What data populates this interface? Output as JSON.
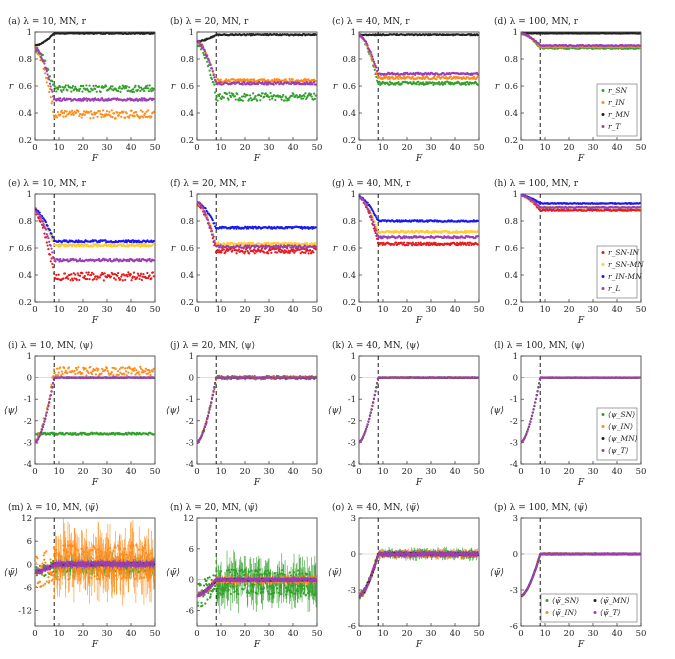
{
  "colors": {
    "SN": "#33a02c",
    "IN": "#ff8c1a",
    "MN": "#222222",
    "T": "#9b3fb3",
    "SN-IN": "#e41a1c",
    "SN-MN": "#ffcc33",
    "IN-MN": "#1a1aee",
    "L": "#9b3fb3"
  },
  "chart_data": [
    {
      "id": "a",
      "type": "scatter",
      "title": "(a) λ = 10, MN, r",
      "xlabel": "F",
      "ylabel": "r",
      "xlim": [
        0,
        50
      ],
      "ylim": [
        0.2,
        1.0
      ],
      "xticks": [
        "0",
        "10",
        "20",
        "30",
        "40",
        "50"
      ],
      "yticks": [
        "0.2",
        "0.4",
        "0.6",
        "0.8",
        "1"
      ],
      "dashed_x": 8,
      "series": [
        {
          "key": "SN",
          "name": "r_SN",
          "start": 0.88,
          "level": 0.58,
          "noise": 0.025
        },
        {
          "key": "IN",
          "name": "r_IN",
          "start": 0.88,
          "level": 0.39,
          "noise": 0.03
        },
        {
          "key": "MN",
          "name": "r_MN",
          "start": 0.9,
          "level": 0.99,
          "noise": 0.004
        },
        {
          "key": "T",
          "name": "r_T",
          "start": 0.88,
          "level": 0.5,
          "noise": 0.01
        }
      ]
    },
    {
      "id": "b",
      "type": "scatter",
      "title": "(b) λ = 20, MN, r",
      "xlabel": "F",
      "ylabel": "r",
      "xlim": [
        0,
        50
      ],
      "ylim": [
        0.2,
        1.0
      ],
      "xticks": [
        "0",
        "10",
        "20",
        "30",
        "40",
        "50"
      ],
      "yticks": [
        "0.2",
        "0.4",
        "0.6",
        "0.8",
        "1"
      ],
      "dashed_x": 8,
      "series": [
        {
          "key": "SN",
          "name": "r_SN",
          "start": 0.93,
          "level": 0.52,
          "noise": 0.03
        },
        {
          "key": "IN",
          "name": "r_IN",
          "start": 0.93,
          "level": 0.64,
          "noise": 0.012
        },
        {
          "key": "MN",
          "name": "r_MN",
          "start": 0.93,
          "level": 0.98,
          "noise": 0.005
        },
        {
          "key": "T",
          "name": "r_T",
          "start": 0.93,
          "level": 0.62,
          "noise": 0.01
        }
      ]
    },
    {
      "id": "c",
      "type": "scatter",
      "title": "(c) λ = 40, MN, r",
      "xlabel": "F",
      "ylabel": "r",
      "xlim": [
        0,
        50
      ],
      "ylim": [
        0.2,
        1.0
      ],
      "xticks": [
        "0",
        "10",
        "20",
        "30",
        "40",
        "50"
      ],
      "yticks": [
        "0.2",
        "0.4",
        "0.6",
        "0.8",
        "1"
      ],
      "dashed_x": 8,
      "series": [
        {
          "key": "SN",
          "name": "r_SN",
          "start": 0.98,
          "level": 0.62,
          "noise": 0.012
        },
        {
          "key": "IN",
          "name": "r_IN",
          "start": 0.98,
          "level": 0.66,
          "noise": 0.01
        },
        {
          "key": "MN",
          "name": "r_MN",
          "start": 0.98,
          "level": 0.98,
          "noise": 0.004
        },
        {
          "key": "T",
          "name": "r_T",
          "start": 0.98,
          "level": 0.69,
          "noise": 0.008
        }
      ]
    },
    {
      "id": "d",
      "type": "scatter",
      "title": "(d) λ = 100, MN, r",
      "xlabel": "F",
      "ylabel": "r",
      "xlim": [
        0,
        50
      ],
      "ylim": [
        0.2,
        1.0
      ],
      "xticks": [
        "0",
        "10",
        "20",
        "30",
        "40",
        "50"
      ],
      "yticks": [
        "0.2",
        "0.4",
        "0.6",
        "0.8",
        "1"
      ],
      "dashed_x": 8,
      "legend": [
        {
          "key": "SN",
          "label": "r_SN"
        },
        {
          "key": "IN",
          "label": "r_IN"
        },
        {
          "key": "MN",
          "label": "r_MN"
        },
        {
          "key": "T",
          "label": "r_T"
        }
      ],
      "series": [
        {
          "key": "SN",
          "name": "r_SN",
          "start": 0.99,
          "level": 0.88,
          "noise": 0.005
        },
        {
          "key": "IN",
          "name": "r_IN",
          "start": 0.99,
          "level": 0.89,
          "noise": 0.005
        },
        {
          "key": "MN",
          "name": "r_MN",
          "start": 0.99,
          "level": 0.99,
          "noise": 0.002
        },
        {
          "key": "T",
          "name": "r_T",
          "start": 0.99,
          "level": 0.9,
          "noise": 0.004
        }
      ]
    },
    {
      "id": "e",
      "type": "scatter",
      "title": "(e) λ = 10, MN, r",
      "xlabel": "F",
      "ylabel": "r",
      "xlim": [
        0,
        50
      ],
      "ylim": [
        0.2,
        1.0
      ],
      "xticks": [
        "0",
        "10",
        "20",
        "30",
        "40",
        "50"
      ],
      "yticks": [
        "0.2",
        "0.4",
        "0.6",
        "0.8",
        "1"
      ],
      "dashed_x": 8,
      "series": [
        {
          "key": "SN-IN",
          "name": "r_SN-IN",
          "start": 0.88,
          "level": 0.39,
          "noise": 0.03
        },
        {
          "key": "SN-MN",
          "name": "r_SN-MN",
          "start": 0.88,
          "level": 0.62,
          "noise": 0.01
        },
        {
          "key": "IN-MN",
          "name": "r_IN-MN",
          "start": 0.88,
          "level": 0.65,
          "noise": 0.008
        },
        {
          "key": "L",
          "name": "r_L",
          "start": 0.88,
          "level": 0.51,
          "noise": 0.01
        }
      ]
    },
    {
      "id": "f",
      "type": "scatter",
      "title": "(f) λ = 20, MN, r",
      "xlabel": "F",
      "ylabel": "r",
      "xlim": [
        0,
        50
      ],
      "ylim": [
        0.2,
        1.0
      ],
      "xticks": [
        "0",
        "10",
        "20",
        "30",
        "40",
        "50"
      ],
      "yticks": [
        "0.2",
        "0.4",
        "0.6",
        "0.8",
        "1"
      ],
      "dashed_x": 8,
      "series": [
        {
          "key": "SN-IN",
          "name": "r_SN-IN",
          "start": 0.94,
          "level": 0.58,
          "noise": 0.02
        },
        {
          "key": "SN-MN",
          "name": "r_SN-MN",
          "start": 0.94,
          "level": 0.63,
          "noise": 0.01
        },
        {
          "key": "IN-MN",
          "name": "r_IN-MN",
          "start": 0.94,
          "level": 0.75,
          "noise": 0.008
        },
        {
          "key": "L",
          "name": "r_L",
          "start": 0.94,
          "level": 0.61,
          "noise": 0.01
        }
      ]
    },
    {
      "id": "g",
      "type": "scatter",
      "title": "(g) λ = 40, MN, r",
      "xlabel": "F",
      "ylabel": "r",
      "xlim": [
        0,
        50
      ],
      "ylim": [
        0.2,
        1.0
      ],
      "xticks": [
        "0",
        "10",
        "20",
        "30",
        "40",
        "50"
      ],
      "yticks": [
        "0.2",
        "0.4",
        "0.6",
        "0.8",
        "1"
      ],
      "dashed_x": 8,
      "series": [
        {
          "key": "SN-IN",
          "name": "r_SN-IN",
          "start": 0.98,
          "level": 0.63,
          "noise": 0.01
        },
        {
          "key": "SN-MN",
          "name": "r_SN-MN",
          "start": 0.98,
          "level": 0.72,
          "noise": 0.008
        },
        {
          "key": "IN-MN",
          "name": "r_IN-MN",
          "start": 0.98,
          "level": 0.8,
          "noise": 0.006
        },
        {
          "key": "L",
          "name": "r_L",
          "start": 0.98,
          "level": 0.68,
          "noise": 0.008
        }
      ]
    },
    {
      "id": "h",
      "type": "scatter",
      "title": "(h) λ = 100, MN, r",
      "xlabel": "F",
      "ylabel": "r",
      "xlim": [
        0,
        50
      ],
      "ylim": [
        0.2,
        1.0
      ],
      "xticks": [
        "0",
        "10",
        "20",
        "30",
        "40",
        "50"
      ],
      "yticks": [
        "0.2",
        "0.4",
        "0.6",
        "0.8",
        "1"
      ],
      "dashed_x": 8,
      "legend": [
        {
          "key": "SN-IN",
          "label": "r_SN-IN"
        },
        {
          "key": "SN-MN",
          "label": "r_SN-MN"
        },
        {
          "key": "IN-MN",
          "label": "r_IN-MN"
        },
        {
          "key": "L",
          "label": "r_L"
        }
      ],
      "series": [
        {
          "key": "SN-IN",
          "name": "r_SN-IN",
          "start": 0.99,
          "level": 0.88,
          "noise": 0.005
        },
        {
          "key": "SN-MN",
          "name": "r_SN-MN",
          "start": 0.99,
          "level": 0.9,
          "noise": 0.004
        },
        {
          "key": "IN-MN",
          "name": "r_IN-MN",
          "start": 0.99,
          "level": 0.93,
          "noise": 0.003
        },
        {
          "key": "L",
          "name": "r_L",
          "start": 0.99,
          "level": 0.9,
          "noise": 0.004
        }
      ]
    },
    {
      "id": "i",
      "type": "scatter",
      "title": "(i) λ = 10, MN, ⟨ψ⟩",
      "xlabel": "F",
      "ylabel": "⟨ψ⟩",
      "xlim": [
        0,
        50
      ],
      "ylim": [
        -4,
        1
      ],
      "xticks": [
        "0",
        "10",
        "20",
        "30",
        "40",
        "50"
      ],
      "yticks": [
        "-4",
        "-3",
        "-2",
        "-1",
        "0",
        "1"
      ],
      "dashed_x": 8,
      "series": [
        {
          "key": "SN",
          "name": "⟨ψ_SN⟩",
          "start": -2.6,
          "level": -2.6,
          "noise": 0.05
        },
        {
          "key": "IN",
          "name": "⟨ψ_IN⟩",
          "start": -3,
          "level": 0.3,
          "noise": 0.2
        },
        {
          "key": "MN",
          "name": "⟨ψ_MN⟩",
          "start": -3,
          "level": 0.0,
          "noise": 0.01
        },
        {
          "key": "T",
          "name": "⟨ψ_T⟩",
          "start": -3,
          "level": 0.0,
          "noise": 0.02
        }
      ]
    },
    {
      "id": "j",
      "type": "scatter",
      "title": "(j) λ = 20, MN, ⟨ψ⟩",
      "xlabel": "F",
      "ylabel": "⟨ψ⟩",
      "xlim": [
        0,
        50
      ],
      "ylim": [
        -4,
        1
      ],
      "xticks": [
        "0",
        "10",
        "20",
        "30",
        "40",
        "50"
      ],
      "yticks": [
        "-4",
        "-3",
        "-2",
        "-1",
        "0",
        "1"
      ],
      "dashed_x": 8,
      "series": [
        {
          "key": "SN",
          "name": "⟨ψ_SN⟩",
          "start": -3,
          "level": 0.0,
          "noise": 0.08
        },
        {
          "key": "IN",
          "name": "⟨ψ_IN⟩",
          "start": -3,
          "level": 0.0,
          "noise": 0.05
        },
        {
          "key": "MN",
          "name": "⟨ψ_MN⟩",
          "start": -3,
          "level": 0.0,
          "noise": 0.01
        },
        {
          "key": "T",
          "name": "⟨ψ_T⟩",
          "start": -3,
          "level": 0.0,
          "noise": 0.02
        }
      ]
    },
    {
      "id": "k",
      "type": "scatter",
      "title": "(k) λ = 40, MN, ⟨ψ⟩",
      "xlabel": "F",
      "ylabel": "⟨ψ⟩",
      "xlim": [
        0,
        50
      ],
      "ylim": [
        -4,
        1
      ],
      "xticks": [
        "0",
        "10",
        "20",
        "30",
        "40",
        "50"
      ],
      "yticks": [
        "-4",
        "-3",
        "-2",
        "-1",
        "0",
        "1"
      ],
      "dashed_x": 8,
      "series": [
        {
          "key": "SN",
          "name": "⟨ψ_SN⟩",
          "start": -3,
          "level": 0.0,
          "noise": 0.02
        },
        {
          "key": "IN",
          "name": "⟨ψ_IN⟩",
          "start": -3,
          "level": 0.0,
          "noise": 0.02
        },
        {
          "key": "MN",
          "name": "⟨ψ_MN⟩",
          "start": -3,
          "level": 0.0,
          "noise": 0.01
        },
        {
          "key": "T",
          "name": "⟨ψ_T⟩",
          "start": -3,
          "level": 0.0,
          "noise": 0.01
        }
      ]
    },
    {
      "id": "l",
      "type": "scatter",
      "title": "(l) λ = 100, MN, ⟨ψ⟩",
      "xlabel": "F",
      "ylabel": "⟨ψ⟩",
      "xlim": [
        0,
        50
      ],
      "ylim": [
        -4,
        1
      ],
      "xticks": [
        "0",
        "10",
        "20",
        "30",
        "40",
        "50"
      ],
      "yticks": [
        "-4",
        "-3",
        "-2",
        "-1",
        "0",
        "1"
      ],
      "dashed_x": 8,
      "legend": [
        {
          "key": "SN",
          "label": "⟨ψ_SN⟩"
        },
        {
          "key": "IN",
          "label": "⟨ψ_IN⟩"
        },
        {
          "key": "MN",
          "label": "⟨ψ_MN⟩"
        },
        {
          "key": "T",
          "label": "⟨ψ_T⟩"
        }
      ],
      "series": [
        {
          "key": "SN",
          "name": "⟨ψ_SN⟩",
          "start": -3,
          "level": 0.0,
          "noise": 0.01
        },
        {
          "key": "IN",
          "name": "⟨ψ_IN⟩",
          "start": -3,
          "level": 0.0,
          "noise": 0.01
        },
        {
          "key": "MN",
          "name": "⟨ψ_MN⟩",
          "start": -3,
          "level": 0.0,
          "noise": 0.005
        },
        {
          "key": "T",
          "name": "⟨ψ_T⟩",
          "start": -3,
          "level": 0.0,
          "noise": 0.01
        }
      ]
    },
    {
      "id": "m",
      "type": "scatter",
      "title": "(m) λ = 10, MN, ⟨ψ̃⟩",
      "xlabel": "F",
      "ylabel": "⟨ψ̃⟩",
      "xlim": [
        0,
        50
      ],
      "ylim": [
        -16,
        12
      ],
      "xticks": [
        "0",
        "10",
        "20",
        "30",
        "40",
        "50"
      ],
      "yticks": [
        "-12",
        "-6",
        "0",
        "6",
        "12"
      ],
      "dashed_x": 8,
      "series": [
        {
          "key": "SN",
          "name": "⟨ψ̃_SN⟩",
          "start": -2,
          "level": -0.5,
          "noise": 1.5
        },
        {
          "key": "IN",
          "name": "⟨ψ̃_IN⟩",
          "start": -2,
          "level": 0.5,
          "noise": 4.5
        },
        {
          "key": "MN",
          "name": "⟨ψ̃_MN⟩",
          "start": -2,
          "level": 0.0,
          "noise": 0.3
        },
        {
          "key": "T",
          "name": "⟨ψ̃_T⟩",
          "start": -2,
          "level": 0.0,
          "noise": 0.6
        }
      ]
    },
    {
      "id": "n",
      "type": "scatter",
      "title": "(n) λ = 20, MN, ⟨ψ̃⟩",
      "xlabel": "F",
      "ylabel": "⟨ψ̃⟩",
      "xlim": [
        0,
        50
      ],
      "ylim": [
        -9,
        12
      ],
      "xticks": [
        "0",
        "10",
        "20",
        "30",
        "40",
        "50"
      ],
      "yticks": [
        "-6",
        "0",
        "6",
        "12"
      ],
      "dashed_x": 8,
      "series": [
        {
          "key": "SN",
          "name": "⟨ψ̃_SN⟩",
          "start": -3,
          "level": -0.5,
          "noise": 2.5
        },
        {
          "key": "IN",
          "name": "⟨ψ̃_IN⟩",
          "start": -3,
          "level": 0.0,
          "noise": 0.5
        },
        {
          "key": "MN",
          "name": "⟨ψ̃_MN⟩",
          "start": -3,
          "level": 0.0,
          "noise": 0.2
        },
        {
          "key": "T",
          "name": "⟨ψ̃_T⟩",
          "start": -3,
          "level": 0.0,
          "noise": 0.3
        }
      ]
    },
    {
      "id": "o",
      "type": "scatter",
      "title": "(o) λ = 40, MN, ⟨ψ̃⟩",
      "xlabel": "F",
      "ylabel": "⟨ψ̃⟩",
      "xlim": [
        0,
        50
      ],
      "ylim": [
        -6,
        3
      ],
      "xticks": [
        "0",
        "10",
        "20",
        "30",
        "40",
        "50"
      ],
      "yticks": [
        "-6",
        "-3",
        "0",
        "3"
      ],
      "dashed_x": 8,
      "series": [
        {
          "key": "SN",
          "name": "⟨ψ̃_SN⟩",
          "start": -3.5,
          "level": 0.0,
          "noise": 0.25
        },
        {
          "key": "IN",
          "name": "⟨ψ̃_IN⟩",
          "start": -3.5,
          "level": 0.0,
          "noise": 0.2
        },
        {
          "key": "MN",
          "name": "⟨ψ̃_MN⟩",
          "start": -3.5,
          "level": 0.0,
          "noise": 0.1
        },
        {
          "key": "T",
          "name": "⟨ψ̃_T⟩",
          "start": -3.5,
          "level": 0.0,
          "noise": 0.15
        }
      ]
    },
    {
      "id": "p",
      "type": "scatter",
      "title": "(p) λ = 100, MN, ⟨ψ̃⟩",
      "xlabel": "F",
      "ylabel": "⟨ψ̃⟩",
      "xlim": [
        0,
        50
      ],
      "ylim": [
        -6,
        3
      ],
      "xticks": [
        "0",
        "10",
        "20",
        "30",
        "40",
        "50"
      ],
      "yticks": [
        "-6",
        "-3",
        "0",
        "3"
      ],
      "dashed_x": 8,
      "legend": [
        {
          "key": "SN",
          "label": "⟨ψ̃_SN⟩"
        },
        {
          "key": "MN",
          "label": "⟨ψ̃_MN⟩"
        },
        {
          "key": "IN",
          "label": "⟨ψ̃_IN⟩"
        },
        {
          "key": "T",
          "label": "⟨ψ̃_T⟩"
        }
      ],
      "series": [
        {
          "key": "SN",
          "name": "⟨ψ̃_SN⟩",
          "start": -3.5,
          "level": 0.0,
          "noise": 0.06
        },
        {
          "key": "IN",
          "name": "⟨ψ̃_IN⟩",
          "start": -3.5,
          "level": 0.0,
          "noise": 0.06
        },
        {
          "key": "MN",
          "name": "⟨ψ̃_MN⟩",
          "start": -3.5,
          "level": 0.0,
          "noise": 0.03
        },
        {
          "key": "T",
          "name": "⟨ψ̃_T⟩",
          "start": -3.5,
          "level": 0.0,
          "noise": 0.05
        }
      ]
    }
  ]
}
